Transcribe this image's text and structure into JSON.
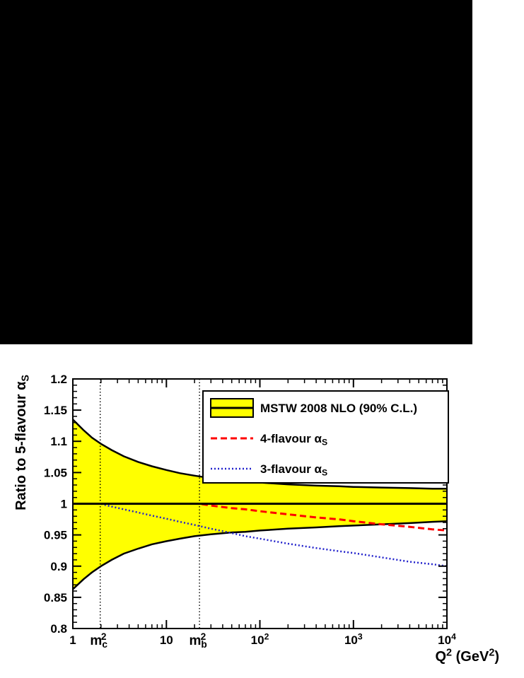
{
  "screen": {
    "top_area_color": "#000000",
    "plot_background": "#ffffff"
  },
  "chart_data": {
    "type": "line",
    "title": "",
    "xlabel": "Q^2  (GeV^2)",
    "ylabel": "Ratio to 5-flavour α_S",
    "xscale": "log",
    "xlim": [
      1,
      10000
    ],
    "ylim": [
      0.8,
      1.2
    ],
    "grid": false,
    "x_ticks": [
      {
        "v": 1,
        "label": "1"
      },
      {
        "v": 10,
        "label": "10"
      },
      {
        "v": 100,
        "label": "10^2"
      },
      {
        "v": 1000,
        "label": "10^3"
      },
      {
        "v": 10000,
        "label": "10^4"
      }
    ],
    "y_ticks": [
      {
        "v": 0.8,
        "label": "0.8"
      },
      {
        "v": 0.85,
        "label": "0.85"
      },
      {
        "v": 0.9,
        "label": "0.9"
      },
      {
        "v": 0.95,
        "label": "0.95"
      },
      {
        "v": 1.0,
        "label": "1"
      },
      {
        "v": 1.05,
        "label": "1.05"
      },
      {
        "v": 1.1,
        "label": "1.1"
      },
      {
        "v": 1.15,
        "label": "1.15"
      },
      {
        "v": 1.2,
        "label": "1.2"
      }
    ],
    "reference_line": {
      "y": 1.0,
      "color": "#000000"
    },
    "vertical_lines": [
      {
        "x": 1.96,
        "label": "m_c^2"
      },
      {
        "x": 22.6,
        "label": "m_b^2"
      }
    ],
    "band": {
      "name": "MSTW 2008 NLO (90% C.L.)",
      "fill": "#ffff00",
      "edge_color": "#000000",
      "upper": [
        [
          1,
          1.135
        ],
        [
          1.3,
          1.118
        ],
        [
          1.6,
          1.106
        ],
        [
          2,
          1.096
        ],
        [
          2.6,
          1.086
        ],
        [
          3.5,
          1.076
        ],
        [
          5,
          1.067
        ],
        [
          7,
          1.06
        ],
        [
          10,
          1.054
        ],
        [
          14,
          1.049
        ],
        [
          20,
          1.045
        ],
        [
          30,
          1.041
        ],
        [
          50,
          1.038
        ],
        [
          70,
          1.036
        ],
        [
          100,
          1.034
        ],
        [
          200,
          1.031
        ],
        [
          400,
          1.029
        ],
        [
          700,
          1.028
        ],
        [
          1000,
          1.027
        ],
        [
          2000,
          1.026
        ],
        [
          4000,
          1.025
        ],
        [
          7000,
          1.024
        ],
        [
          10000,
          1.024
        ]
      ],
      "lower": [
        [
          1,
          0.863
        ],
        [
          1.3,
          0.879
        ],
        [
          1.6,
          0.89
        ],
        [
          2,
          0.9
        ],
        [
          2.6,
          0.91
        ],
        [
          3.5,
          0.92
        ],
        [
          5,
          0.928
        ],
        [
          7,
          0.935
        ],
        [
          10,
          0.94
        ],
        [
          14,
          0.944
        ],
        [
          20,
          0.948
        ],
        [
          30,
          0.951
        ],
        [
          50,
          0.954
        ],
        [
          70,
          0.955
        ],
        [
          100,
          0.957
        ],
        [
          200,
          0.96
        ],
        [
          400,
          0.962
        ],
        [
          700,
          0.964
        ],
        [
          1000,
          0.965
        ],
        [
          2000,
          0.967
        ],
        [
          4000,
          0.969
        ],
        [
          7000,
          0.971
        ],
        [
          10000,
          0.972
        ]
      ]
    },
    "series": [
      {
        "name": "4-flavour α_S",
        "color": "#ff0000",
        "style": "dashed",
        "points": [
          [
            1,
            1.0
          ],
          [
            5,
            1.0
          ],
          [
            10,
            1.0
          ],
          [
            20,
            1.0
          ],
          [
            22.6,
            1.0
          ],
          [
            30,
            0.997
          ],
          [
            50,
            0.993
          ],
          [
            70,
            0.991
          ],
          [
            100,
            0.988
          ],
          [
            200,
            0.983
          ],
          [
            400,
            0.978
          ],
          [
            700,
            0.975
          ],
          [
            1000,
            0.972
          ],
          [
            2000,
            0.967
          ],
          [
            4000,
            0.963
          ],
          [
            7000,
            0.959
          ],
          [
            10000,
            0.957
          ]
        ]
      },
      {
        "name": "3-flavour α_S",
        "color": "#2222cc",
        "style": "dotted",
        "points": [
          [
            1,
            1.0
          ],
          [
            1.96,
            1.0
          ],
          [
            2.5,
            0.996
          ],
          [
            3.5,
            0.991
          ],
          [
            5,
            0.986
          ],
          [
            7,
            0.981
          ],
          [
            10,
            0.976
          ],
          [
            14,
            0.971
          ],
          [
            20,
            0.966
          ],
          [
            30,
            0.96
          ],
          [
            50,
            0.953
          ],
          [
            70,
            0.948
          ],
          [
            100,
            0.944
          ],
          [
            200,
            0.936
          ],
          [
            400,
            0.929
          ],
          [
            700,
            0.924
          ],
          [
            1000,
            0.921
          ],
          [
            2000,
            0.914
          ],
          [
            4000,
            0.907
          ],
          [
            7000,
            0.903
          ],
          [
            10000,
            0.9
          ]
        ]
      }
    ],
    "legend": {
      "position": "top-right",
      "entries": [
        {
          "label": "MSTW 2008 NLO (90% C.L.)",
          "type": "band",
          "fill": "#ffff00",
          "line": "#000000"
        },
        {
          "label": "4-flavour α_S",
          "type": "dashed",
          "color": "#ff0000"
        },
        {
          "label": "3-flavour α_S",
          "type": "dotted",
          "color": "#2222cc"
        }
      ]
    }
  }
}
